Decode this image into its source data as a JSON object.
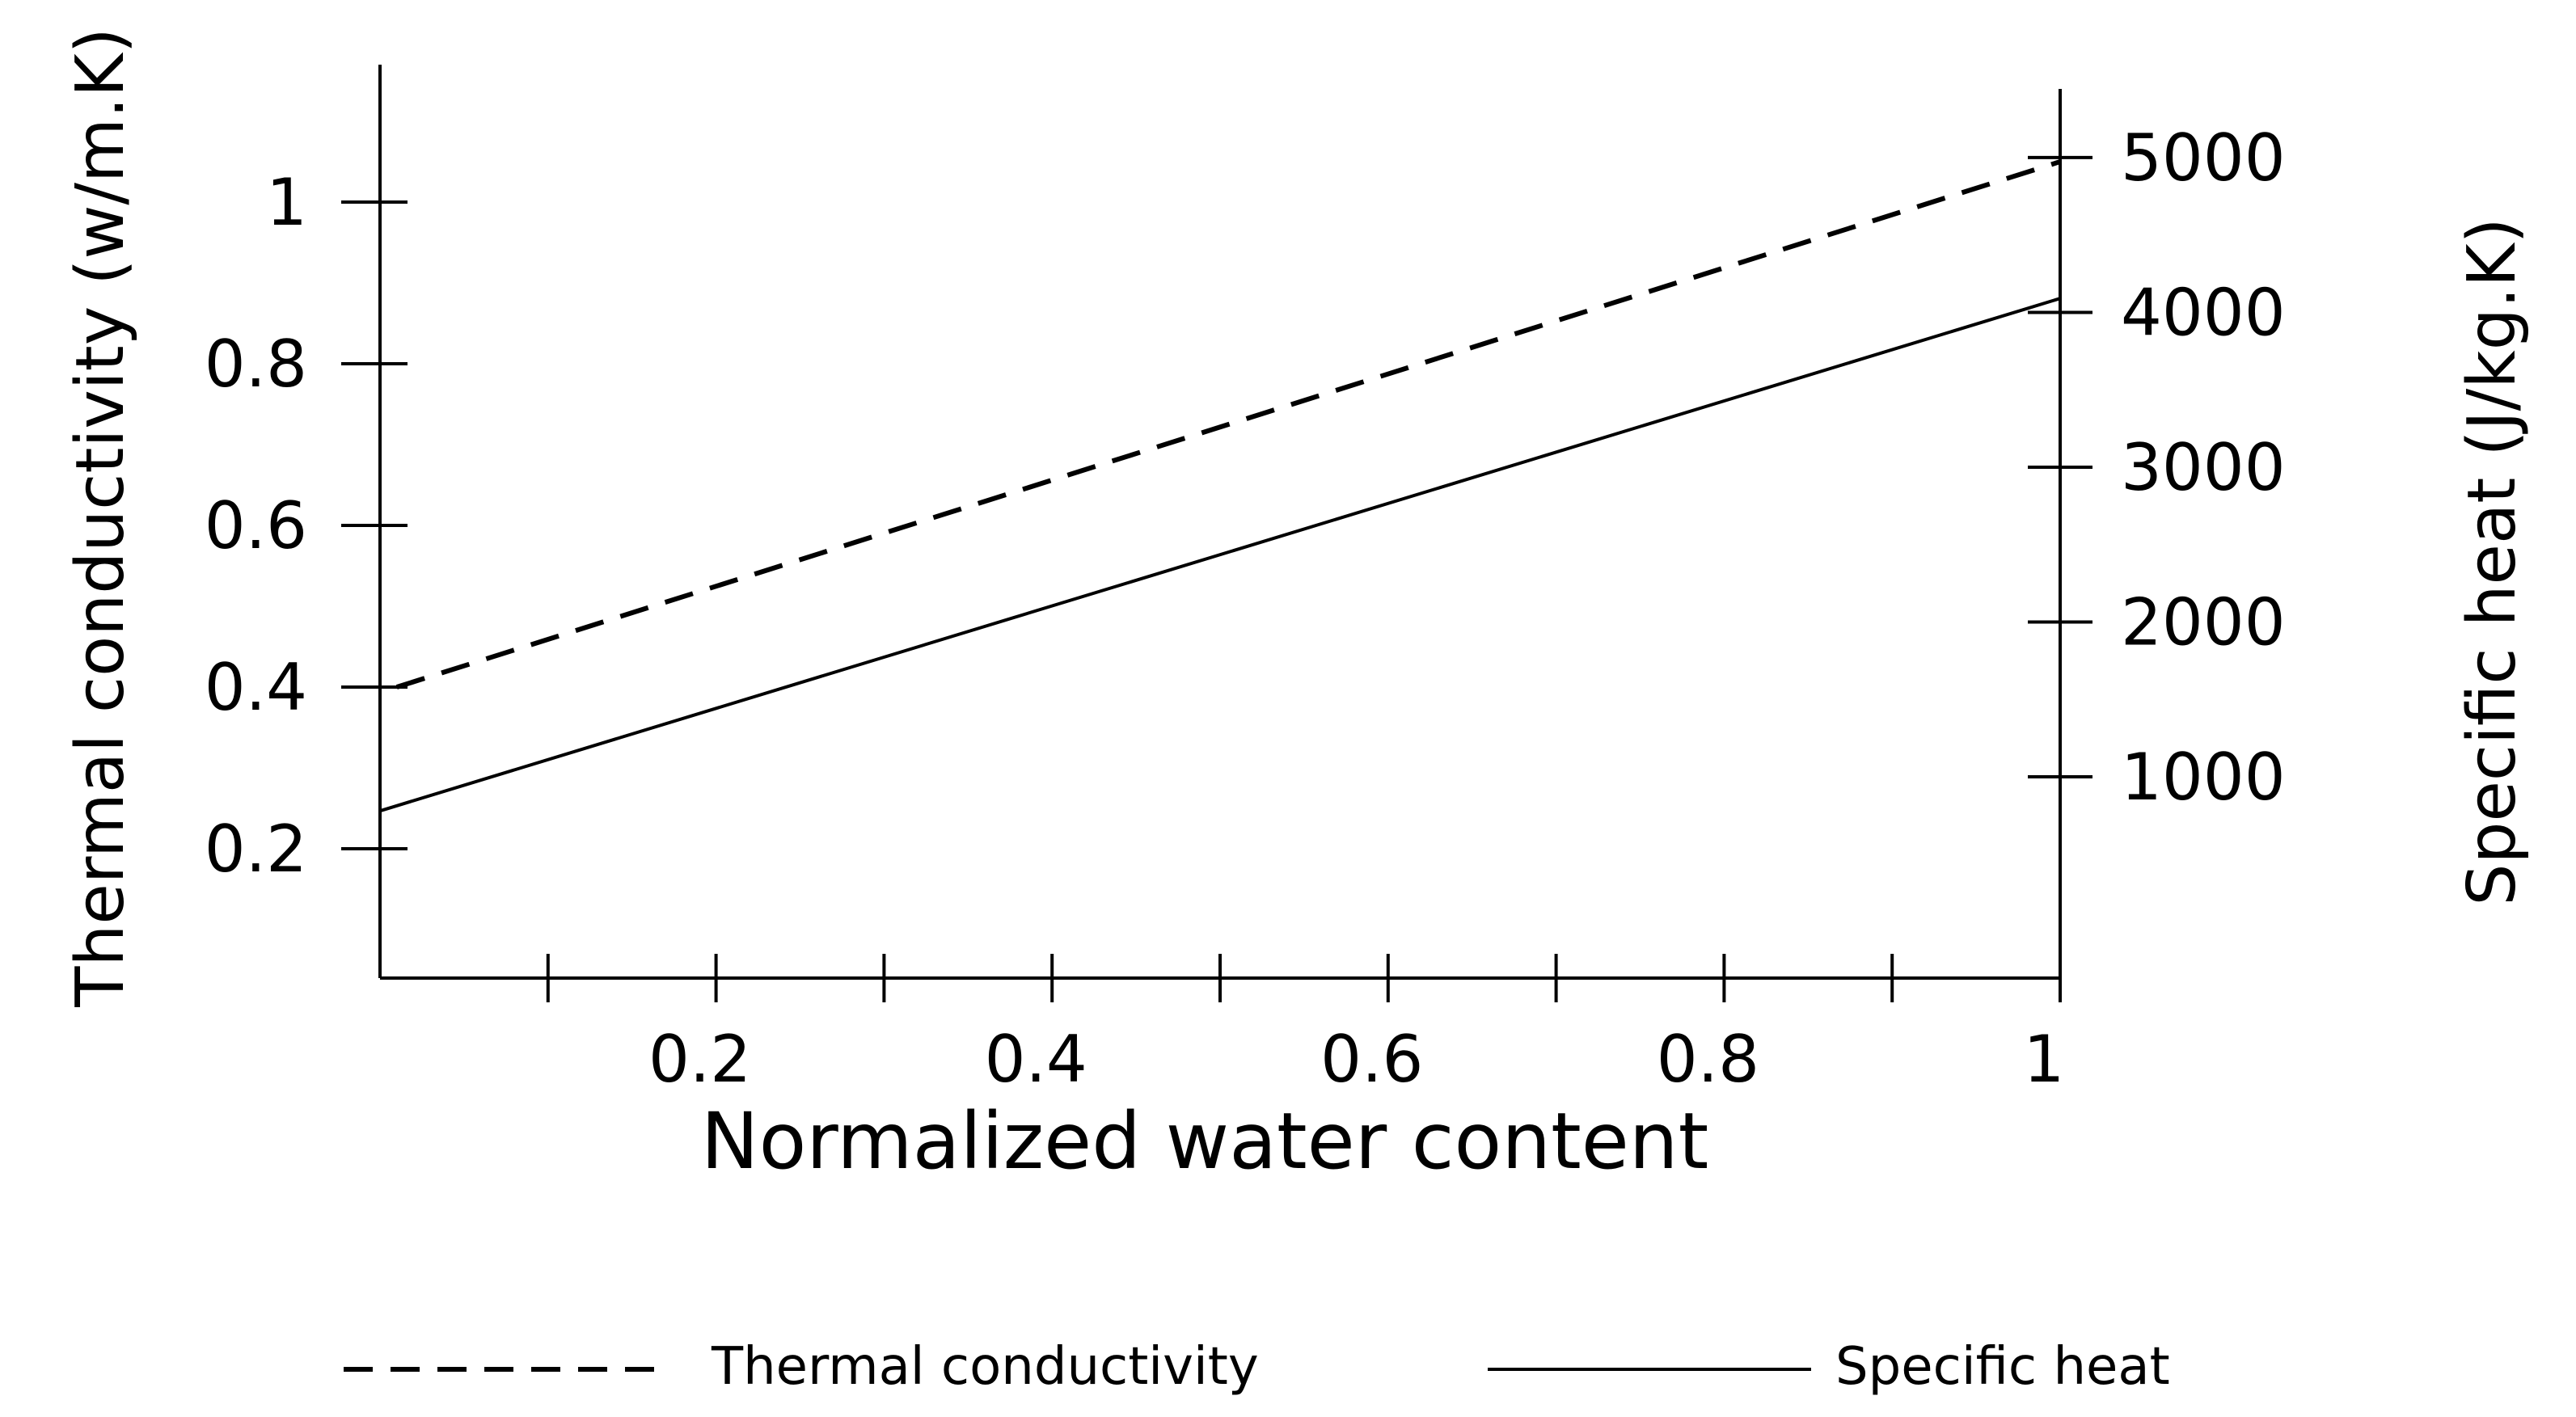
{
  "chart_data": {
    "type": "line",
    "title": "",
    "xlabel": "Normalized water content",
    "ylabel_left": "Thermal conductivity (w/m.K)",
    "ylabel_right": "Specific heat (J/kg.K)",
    "xlim": [
      0,
      1
    ],
    "ylim_left": [
      0.04,
      1.17
    ],
    "ylim_right": [
      -300,
      5600
    ],
    "x_ticks": [
      0.1,
      0.2,
      0.3,
      0.4,
      0.5,
      0.6,
      0.7,
      0.8,
      0.9,
      1
    ],
    "x_tick_labels": [
      "0.2",
      "0.4",
      "0.6",
      "0.8",
      "1"
    ],
    "x_tick_label_values": [
      0.2,
      0.4,
      0.6,
      0.8,
      1
    ],
    "y_left_ticks": [
      0.2,
      0.4,
      0.6,
      0.8,
      1
    ],
    "y_left_tick_labels": [
      "0.2",
      "0.4",
      "0.6",
      "0.8",
      "1"
    ],
    "y_right_ticks": [
      1000,
      2000,
      3000,
      4000,
      5000
    ],
    "y_right_tick_labels": [
      "1000",
      "2000",
      "3000",
      "4000",
      "5000"
    ],
    "grid": false,
    "legend_position": "bottom",
    "series": [
      {
        "name": "Thermal conductivity",
        "axis": "left",
        "style": "dashed",
        "color": "#000000",
        "x": [
          0.01,
          1
        ],
        "y": [
          0.4,
          1.05
        ]
      },
      {
        "name": "Specific heat",
        "axis": "right",
        "style": "solid",
        "color": "#000000",
        "x": [
          0,
          1
        ],
        "y": [
          780,
          4090
        ]
      }
    ]
  }
}
